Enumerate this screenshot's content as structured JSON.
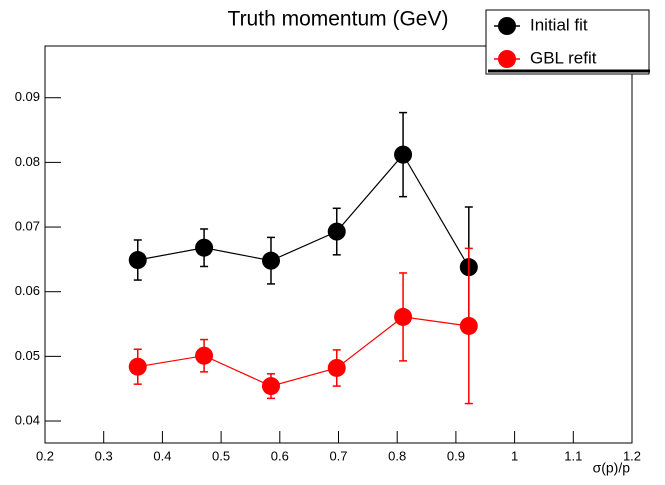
{
  "chart_data": {
    "type": "errorbar",
    "title": "Truth momentum (GeV)",
    "x_label": "σ(p)/p",
    "xlim": [
      0.2,
      1.2
    ],
    "xticks": [
      0.2,
      0.3,
      0.4,
      0.5,
      0.6,
      0.7,
      0.8,
      0.9,
      1,
      1.1,
      1.2
    ],
    "ylim": [
      0.0366,
      0.098
    ],
    "yticks": [
      0.04,
      0.05,
      0.06,
      0.07,
      0.08,
      0.09
    ],
    "legend": "top-right",
    "x": [
      0.358,
      0.471,
      0.585,
      0.697,
      0.81,
      0.922
    ],
    "series": [
      {
        "name": "Initial fit",
        "color": "#000000",
        "values": [
          0.0649,
          0.0668,
          0.0648,
          0.0693,
          0.0812,
          0.0638
        ],
        "errors": [
          0.0031,
          0.0029,
          0.0036,
          0.0036,
          0.0065,
          0.0093
        ]
      },
      {
        "name": "GBL refit",
        "color": "#ff0000",
        "values": [
          0.0484,
          0.0501,
          0.0454,
          0.0482,
          0.0561,
          0.0547
        ],
        "errors": [
          0.0027,
          0.0025,
          0.0019,
          0.0028,
          0.0068,
          0.012
        ]
      }
    ]
  }
}
